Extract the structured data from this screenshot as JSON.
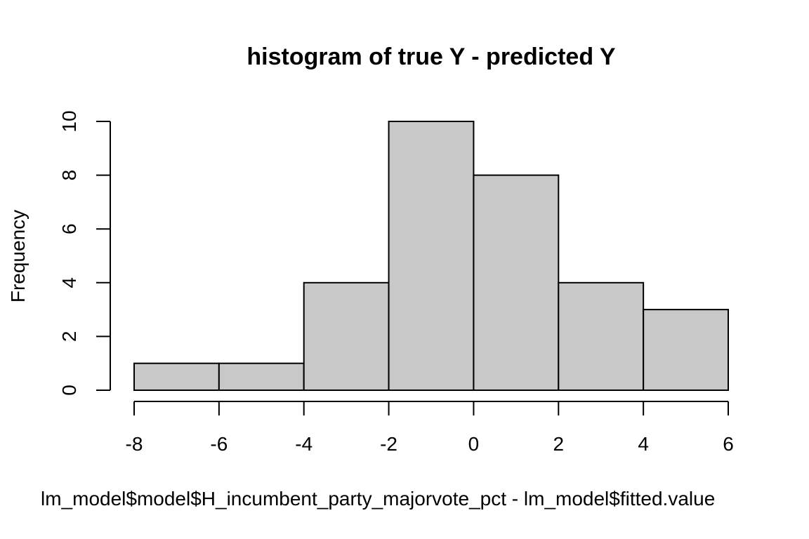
{
  "chart_data": {
    "type": "histogram",
    "title": "histogram of true Y - predicted Y",
    "xlabel": "lm_model$model$H_incumbent_party_majorvote_pct - lm_model$fitted.value",
    "ylabel": "Frequency",
    "bins": [
      {
        "x0": -8,
        "x1": -6,
        "count": 1
      },
      {
        "x0": -6,
        "x1": -4,
        "count": 1
      },
      {
        "x0": -4,
        "x1": -2,
        "count": 4
      },
      {
        "x0": -2,
        "x1": 0,
        "count": 10
      },
      {
        "x0": 0,
        "x1": 2,
        "count": 8
      },
      {
        "x0": 2,
        "x1": 4,
        "count": 4
      },
      {
        "x0": 4,
        "x1": 6,
        "count": 3
      }
    ],
    "xlim": [
      -8,
      6
    ],
    "ylim": [
      0,
      10
    ],
    "x_ticks": [
      -8,
      -6,
      -4,
      -2,
      0,
      2,
      4,
      6
    ],
    "y_ticks": [
      0,
      2,
      4,
      6,
      8,
      10
    ],
    "grid": false,
    "bar_color": "#c8c8c8",
    "edge_color": "#000000"
  }
}
